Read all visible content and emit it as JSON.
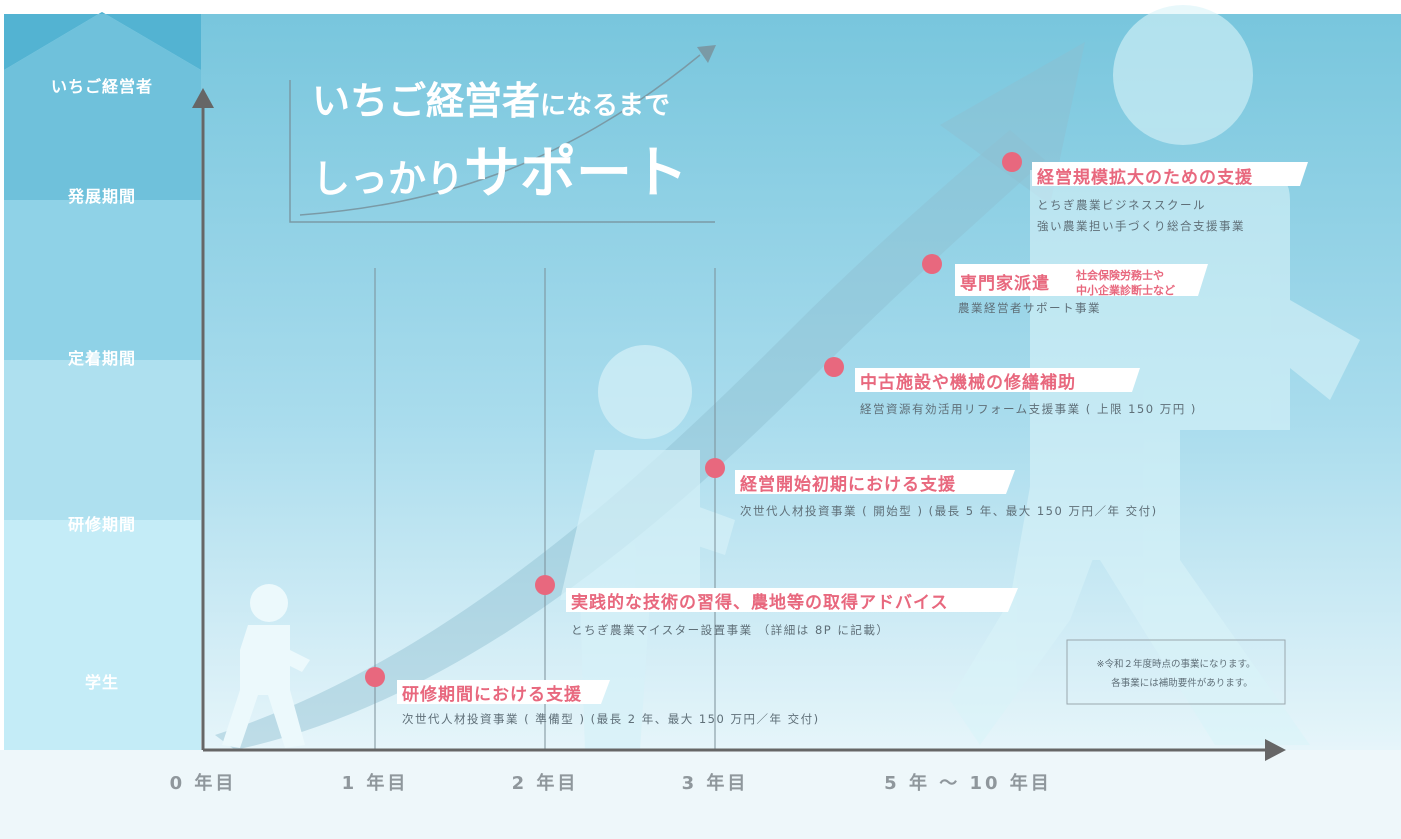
{
  "title": {
    "line1_main": "いちご経営者",
    "line1_rest": "になるまで",
    "line2_a": "しっかり",
    "line2_b": "サポート"
  },
  "stages": [
    {
      "label": "いちご経営者"
    },
    {
      "label": "発展期間"
    },
    {
      "label": "定着期間"
    },
    {
      "label": "研修期間"
    },
    {
      "label": "学生"
    }
  ],
  "timeline": [
    "0 年目",
    "1 年目",
    "2 年目",
    "3 年目",
    "5 年 〜 10 年目"
  ],
  "supports": [
    {
      "title": "経営規模拡大のための支援",
      "details": [
        "とちぎ農業ビジネススクール",
        "強い農業担い手づくり総合支援事業"
      ]
    },
    {
      "title": "専門家派遣",
      "tag_lines": [
        "社会保険労務士や",
        "中小企業診断士など"
      ],
      "details": [
        "農業経営者サポート事業"
      ]
    },
    {
      "title": "中古施設や機械の修繕補助",
      "details": [
        "経営資源有効活用リフォーム支援事業 ( 上限 150 万円 )"
      ]
    },
    {
      "title": "経営開始初期における支援",
      "details": [
        "次世代人材投資事業 ( 開始型 ) (最長 5 年、最大 150 万円／年 交付)"
      ]
    },
    {
      "title": "実践的な技術の習得、農地等の取得アドバイス",
      "details": [
        "とちぎ農業マイスター設置事業 （詳細は 8P に記載）"
      ]
    },
    {
      "title": "研修期間における支援",
      "details": [
        "次世代人材投資事業 ( 準備型 ) (最長 2 年、最大 150 万円／年 交付)"
      ]
    }
  ],
  "note": [
    "※令和２年度時点の事業になります。",
    "各事業には補助要件があります。"
  ],
  "colors": {
    "accent": "#e8687e",
    "bg_top": "#7ecbe0",
    "bg_bottom": "#eaf6fa",
    "axis": "#666666"
  }
}
